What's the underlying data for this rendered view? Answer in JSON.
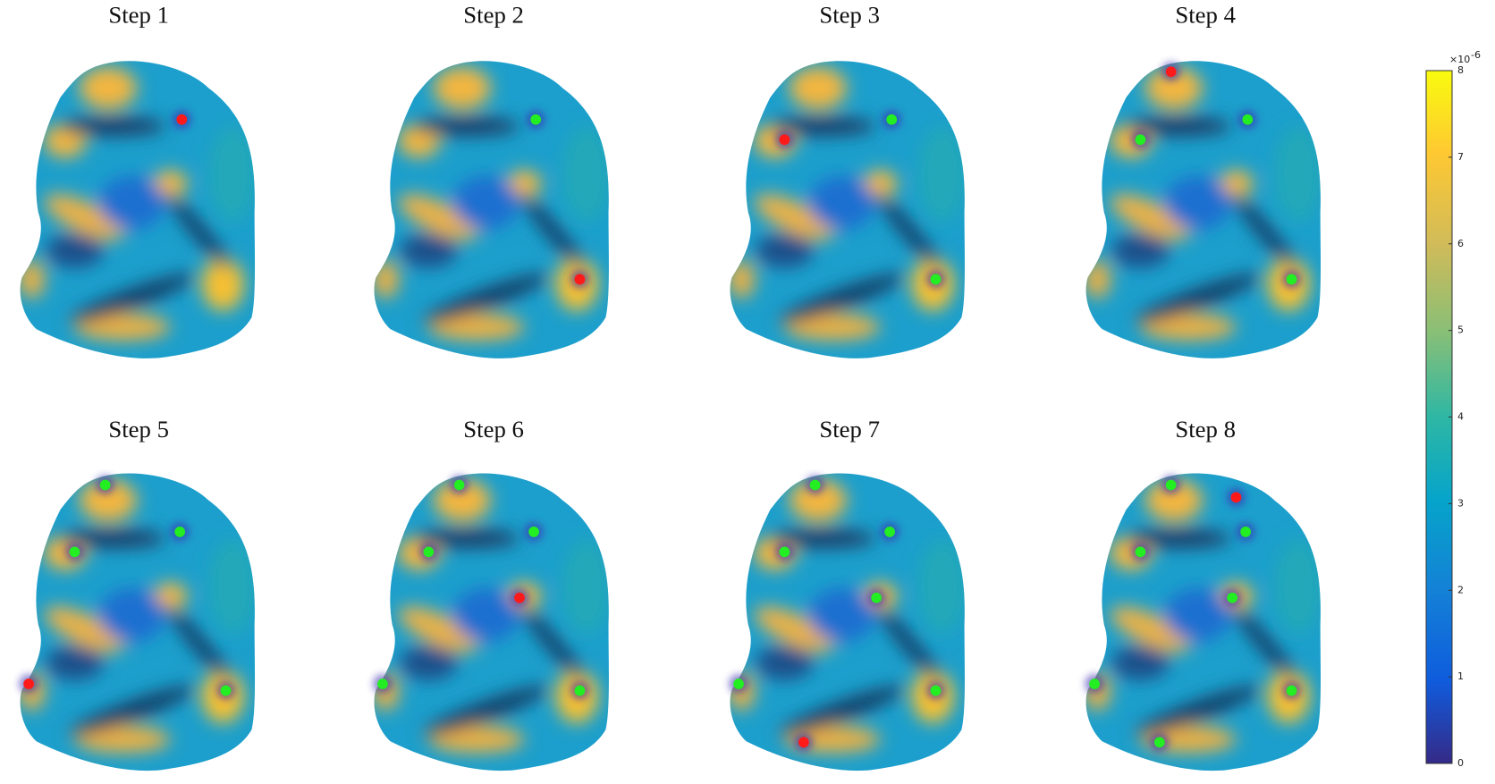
{
  "panels": [
    {
      "title": "Step 1"
    },
    {
      "title": "Step 2"
    },
    {
      "title": "Step 3"
    },
    {
      "title": "Step 4"
    },
    {
      "title": "Step 5"
    },
    {
      "title": "Step 6"
    },
    {
      "title": "Step 7"
    },
    {
      "title": "Step 8"
    }
  ],
  "colorbar": {
    "lim": [
      0,
      8
    ],
    "ticks": [
      0,
      1,
      2,
      3,
      4,
      5,
      6,
      7,
      8
    ],
    "multiplier": "×10",
    "exponent": "-6"
  }
}
